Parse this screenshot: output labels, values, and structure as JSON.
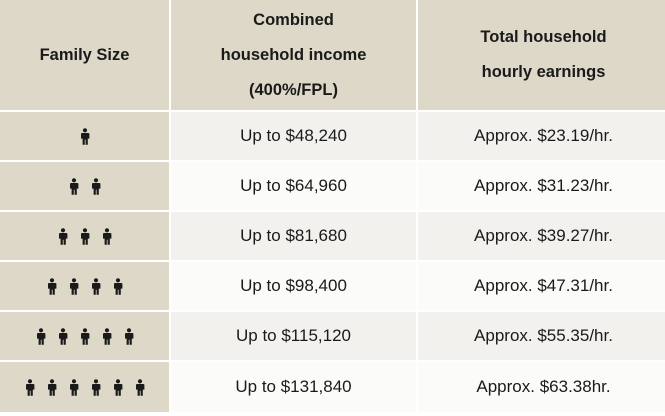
{
  "table": {
    "headers": {
      "family_size": "Family Size",
      "income": [
        "Combined",
        "household income",
        "(400%/FPL)"
      ],
      "earnings": [
        "Total household",
        "hourly earnings"
      ]
    },
    "rows": [
      {
        "family_size": 1,
        "income": "Up to $48,240",
        "earnings": "Approx. $23.19/hr."
      },
      {
        "family_size": 2,
        "income": "Up to $64,960",
        "earnings": "Approx. $31.23/hr."
      },
      {
        "family_size": 3,
        "income": "Up to $81,680",
        "earnings": "Approx. $39.27/hr."
      },
      {
        "family_size": 4,
        "income": "Up to $98,400",
        "earnings": "Approx. $47.31/hr."
      },
      {
        "family_size": 5,
        "income": "Up to $115,120",
        "earnings": "Approx. $55.35/hr."
      },
      {
        "family_size": 6,
        "income": "Up to $131,840",
        "earnings": "Approx. $63.38hr."
      }
    ]
  },
  "icon": "person-icon",
  "colors": {
    "header_bg": "#ddd8c7",
    "cell_bg": "#f2f1ee",
    "cell_bg_alt": "#fbfbf9",
    "text": "#1a1a1a"
  }
}
